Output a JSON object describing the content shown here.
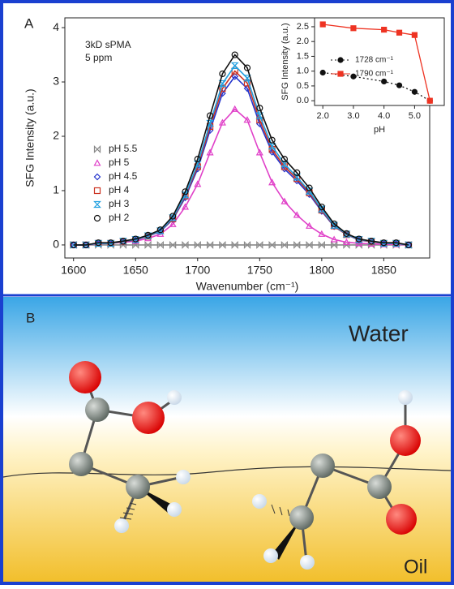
{
  "chart_data": [
    {
      "type": "scatter",
      "panel_label": "A",
      "x_label": "Wavenumber (cm⁻¹)",
      "y_label": "SFG Intensity (a.u.)",
      "annotations": [
        "3kD sPMA",
        "5 ppm"
      ],
      "x": [
        1600,
        1610,
        1620,
        1630,
        1640,
        1650,
        1660,
        1670,
        1680,
        1690,
        1700,
        1710,
        1720,
        1730,
        1740,
        1750,
        1760,
        1770,
        1780,
        1790,
        1800,
        1810,
        1820,
        1830,
        1840,
        1850,
        1860,
        1870
      ],
      "xlim": [
        1593,
        1887
      ],
      "xticks": [
        1600,
        1650,
        1700,
        1750,
        1800,
        1850
      ],
      "ylim": [
        -0.24,
        4.18
      ],
      "yticks": [
        0,
        1,
        2,
        3,
        4
      ],
      "series": [
        {
          "name": "pH 5.5",
          "color": "#888888",
          "marker": "bowtie",
          "values": [
            0,
            0,
            0,
            0,
            0,
            0,
            0,
            0,
            0,
            0,
            0,
            0,
            0,
            0,
            0,
            0,
            0,
            0,
            0,
            0,
            0,
            0,
            0,
            0,
            0,
            0,
            0,
            0
          ]
        },
        {
          "name": "pH 5",
          "color": "#e040c8",
          "marker": "triangle",
          "values": [
            0,
            0,
            0.02,
            0.03,
            0.05,
            0.07,
            0.12,
            0.2,
            0.38,
            0.7,
            1.12,
            1.7,
            2.25,
            2.5,
            2.3,
            1.7,
            1.15,
            0.8,
            0.55,
            0.35,
            0.2,
            0.1,
            0.05,
            0.03,
            0.02,
            0.01,
            0.01,
            0
          ]
        },
        {
          "name": "pH 4.5",
          "color": "#2233cc",
          "marker": "diamond",
          "values": [
            0,
            0,
            0.03,
            0.03,
            0.06,
            0.09,
            0.16,
            0.25,
            0.47,
            0.87,
            1.4,
            2.11,
            2.79,
            3.1,
            2.88,
            2.23,
            1.71,
            1.4,
            1.18,
            0.93,
            0.62,
            0.34,
            0.19,
            0.09,
            0.06,
            0.03,
            0.03,
            0
          ]
        },
        {
          "name": "pH 4",
          "color": "#cc3322",
          "marker": "square",
          "values": [
            0,
            0,
            0.03,
            0.03,
            0.06,
            0.1,
            0.16,
            0.26,
            0.48,
            0.9,
            1.44,
            2.18,
            2.88,
            3.2,
            2.98,
            2.3,
            1.76,
            1.44,
            1.22,
            0.96,
            0.64,
            0.35,
            0.19,
            0.1,
            0.06,
            0.03,
            0.03,
            0
          ]
        },
        {
          "name": "pH 3",
          "color": "#22a0e0",
          "marker": "hourglass",
          "values": [
            0,
            0,
            0.03,
            0.03,
            0.07,
            0.1,
            0.17,
            0.26,
            0.5,
            0.92,
            1.49,
            2.24,
            2.97,
            3.3,
            3.07,
            2.38,
            1.82,
            1.49,
            1.25,
            0.99,
            0.66,
            0.36,
            0.2,
            0.1,
            0.07,
            0.03,
            0.03,
            0
          ]
        },
        {
          "name": "pH 2",
          "color": "#111111",
          "marker": "circle",
          "values": [
            0,
            0,
            0.04,
            0.04,
            0.07,
            0.11,
            0.18,
            0.28,
            0.53,
            0.98,
            1.58,
            2.38,
            3.15,
            3.5,
            3.26,
            2.52,
            1.93,
            1.58,
            1.33,
            1.05,
            0.7,
            0.39,
            0.21,
            0.11,
            0.07,
            0.04,
            0.04,
            0
          ]
        }
      ]
    },
    {
      "type": "line",
      "x_label": "pH",
      "y_label": "SFG Intensity (a.u.)",
      "x": [
        2,
        3,
        4,
        4.5,
        5,
        5.5
      ],
      "xlim": [
        1.73,
        5.97
      ],
      "xticks": [
        {
          "value": 2,
          "label": "2.0"
        },
        {
          "value": 3,
          "label": "3.0"
        },
        {
          "value": 4,
          "label": "4.0"
        },
        {
          "value": 5,
          "label": "5.0"
        }
      ],
      "ylim": [
        -0.16,
        2.8
      ],
      "yticks": [
        {
          "value": 0,
          "label": "0.0"
        },
        {
          "value": 0.5,
          "label": "0.5"
        },
        {
          "value": 1,
          "label": "1.0"
        },
        {
          "value": 1.5,
          "label": "1.5"
        },
        {
          "value": 2,
          "label": "2.0"
        },
        {
          "value": 2.5,
          "label": "2.5"
        }
      ],
      "series": [
        {
          "name": "1728 cm⁻¹",
          "color": "#111111",
          "marker": "filled-circle",
          "line_style": "dotted",
          "values": [
            0.95,
            0.82,
            0.65,
            0.52,
            0.3,
            0
          ]
        },
        {
          "name": "1790 cm⁻¹",
          "color": "#ee3322",
          "marker": "filled-square",
          "line_style": "solid",
          "values": [
            2.58,
            2.45,
            2.4,
            2.3,
            2.22,
            0
          ]
        }
      ]
    }
  ],
  "diagram": {
    "label": "B",
    "water": "Water",
    "oil": "Oil"
  }
}
